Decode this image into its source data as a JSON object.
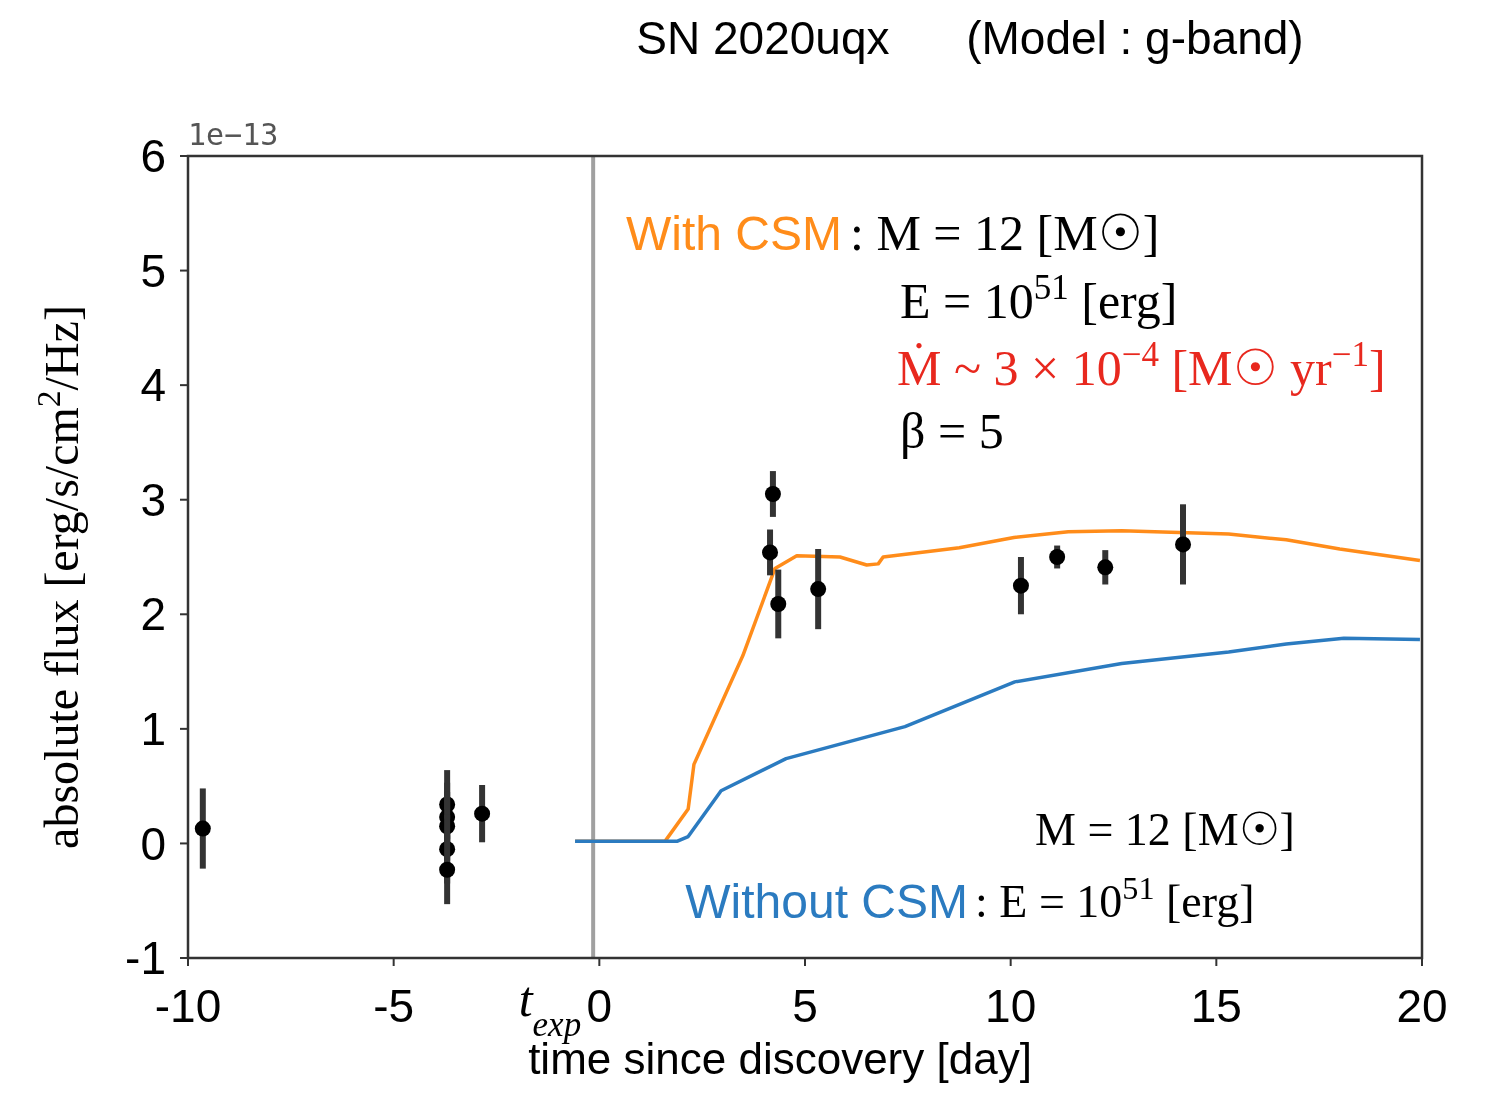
{
  "chart_data": {
    "type": "line",
    "title": "SN 2020uqx      (Model : g-band)",
    "xlabel": "time since discovery [day]",
    "ylabel": "absolute flux [erg/s/cm$^{2}$/Hz]",
    "xlim": [
      -10,
      20
    ],
    "xticks": [
      -10,
      -5,
      0,
      5,
      10,
      15,
      20
    ],
    "ylim": [
      -1,
      6
    ],
    "yticks": [
      -1,
      0,
      1,
      2,
      3,
      4,
      5,
      6
    ],
    "grid": false,
    "ref_lines": [
      {
        "axis": "x",
        "value": -0.15,
        "label": "t$_{exp}$",
        "color": "#a0a0a0"
      }
    ],
    "annotations": [
      ": M = 12 [M☉]",
      "E = 10$^{51}$ [erg]",
      "Ṁ ~ 3 × 10$^{−4}$ [M☉ yr$^{−1}$]",
      "β = 5",
      "M = 12 [M☉]",
      ":  E = 10$^{51}$ [erg]",
      "1e−13"
    ],
    "series": [
      {
        "name": "With CSM",
        "color": "#ff8c1a",
        "x": [
          -0.59,
          1.6,
          2.16,
          2.3,
          3.49,
          4.27,
          4.8,
          5.85,
          6.5,
          6.78,
          6.9,
          8.75,
          10.08,
          11.4,
          12.7,
          15.3,
          16.7,
          18.0,
          19.95
        ],
        "values": [
          0.02,
          0.02,
          0.3,
          0.69,
          1.64,
          2.4,
          2.51,
          2.5,
          2.43,
          2.44,
          2.5,
          2.58,
          2.67,
          2.72,
          2.73,
          2.7,
          2.65,
          2.57,
          2.47
        ]
      },
      {
        "name": "Without CSM",
        "color": "#2b7bc0",
        "x": [
          -0.59,
          1.9,
          2.16,
          2.96,
          4.54,
          7.43,
          10.1,
          12.7,
          15.3,
          16.7,
          18.1,
          19.95
        ],
        "values": [
          0.02,
          0.02,
          0.06,
          0.46,
          0.74,
          1.02,
          1.41,
          1.57,
          1.67,
          1.74,
          1.79,
          1.78
        ]
      },
      {
        "type": "scatter",
        "color": "#000000",
        "marker": "circle",
        "x": [
          -9.64,
          -3.7,
          -3.7,
          -3.7,
          -3.7,
          -3.7,
          -2.85,
          4.15,
          4.22,
          4.35,
          5.32,
          10.25,
          11.13,
          12.3,
          14.19
        ],
        "values": [
          0.13,
          0.34,
          0.23,
          0.15,
          -0.05,
          -0.23,
          0.26,
          2.54,
          3.05,
          2.09,
          2.22,
          2.25,
          2.5,
          2.41,
          2.61
        ],
        "errors": [
          0.35,
          0.3,
          0.3,
          0.3,
          0.3,
          0.3,
          0.25,
          0.2,
          0.2,
          0.3,
          0.35,
          0.25,
          0.1,
          0.15,
          0.35
        ]
      }
    ]
  }
}
